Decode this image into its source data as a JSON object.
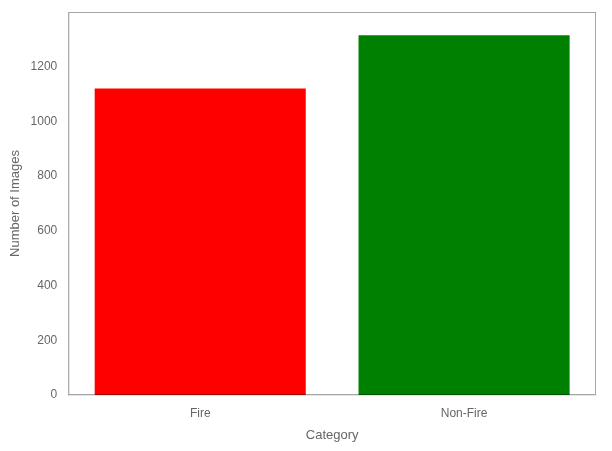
{
  "chart_data": {
    "type": "bar",
    "categories": [
      "Fire",
      "Non-Fire"
    ],
    "values": [
      1120,
      1315
    ],
    "colors": [
      "#ff0000",
      "#008000"
    ],
    "xlabel": "Category",
    "ylabel": "Number of Images",
    "ylim": [
      0,
      1400
    ],
    "yticks": [
      0,
      200,
      400,
      600,
      800,
      1000,
      1200
    ],
    "grid": false
  }
}
